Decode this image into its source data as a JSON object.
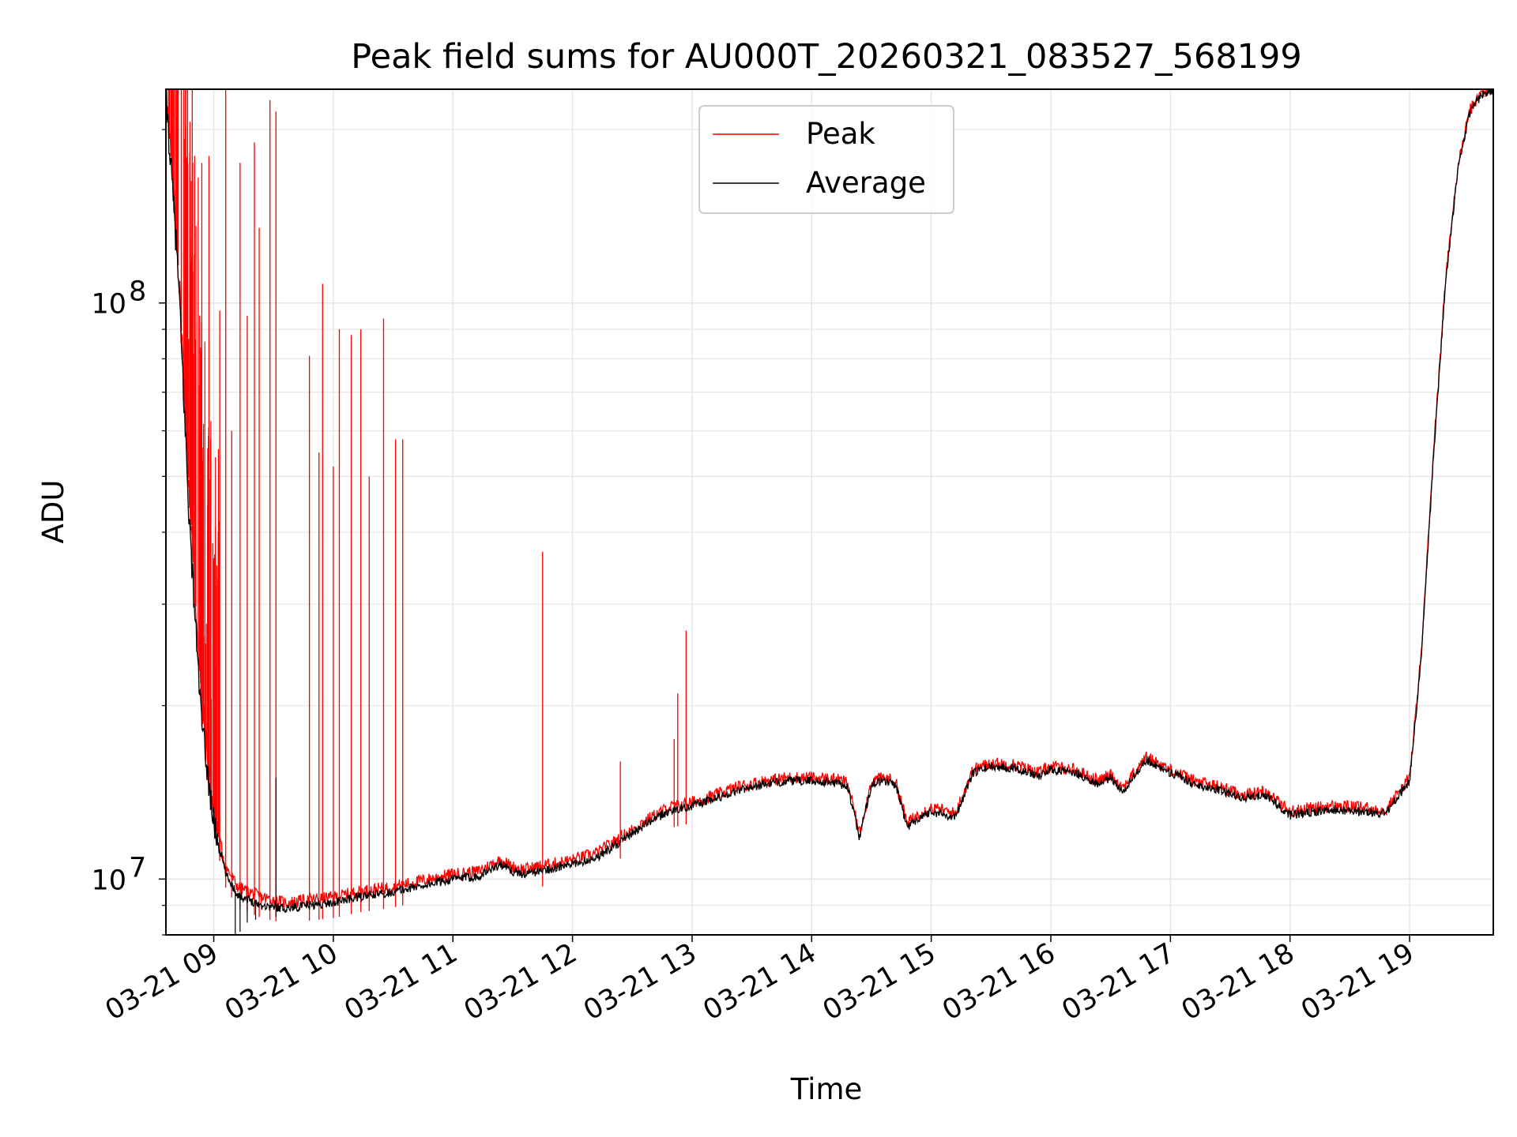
{
  "chart_data": {
    "type": "line",
    "title": "Peak field sums for AU000T_20260321_083527_568199",
    "xlabel": "Time",
    "ylabel": "ADU",
    "x_tick_labels": [
      "03-21 09",
      "03-21 10",
      "03-21 11",
      "03-21 12",
      "03-21 13",
      "03-21 14",
      "03-21 15",
      "03-21 16",
      "03-21 17",
      "03-21 18",
      "03-21 19"
    ],
    "x_tick_hours": [
      9,
      10,
      11,
      12,
      13,
      14,
      15,
      16,
      17,
      18,
      19
    ],
    "xlim_hours": [
      8.6,
      19.7
    ],
    "y_scale": "log",
    "ylim": [
      8000000,
      235000000
    ],
    "y_major_ticks": [
      10000000,
      100000000
    ],
    "y_tick_labels": [
      {
        "base": "10",
        "exp": "7"
      },
      {
        "base": "10",
        "exp": "8"
      }
    ],
    "grid": true,
    "legend_position": "upper-center",
    "series": [
      {
        "name": "Peak",
        "color": "#ff0000",
        "points": [
          [
            8.6,
            235000000
          ],
          [
            8.7,
            120000000
          ],
          [
            8.8,
            45000000
          ],
          [
            8.9,
            20000000
          ],
          [
            9.0,
            13000000
          ],
          [
            9.1,
            10500000
          ],
          [
            9.2,
            9700000
          ],
          [
            9.4,
            9300000
          ],
          [
            9.6,
            9100000
          ],
          [
            9.8,
            9200000
          ],
          [
            10.0,
            9300000
          ],
          [
            10.2,
            9500000
          ],
          [
            10.5,
            9700000
          ],
          [
            10.8,
            10000000
          ],
          [
            11.0,
            10200000
          ],
          [
            11.2,
            10300000
          ],
          [
            11.4,
            10800000
          ],
          [
            11.5,
            10500000
          ],
          [
            11.6,
            10400000
          ],
          [
            11.8,
            10600000
          ],
          [
            12.0,
            10800000
          ],
          [
            12.2,
            11100000
          ],
          [
            12.4,
            11800000
          ],
          [
            12.6,
            12600000
          ],
          [
            12.8,
            13300000
          ],
          [
            13.0,
            13600000
          ],
          [
            13.2,
            14000000
          ],
          [
            13.4,
            14500000
          ],
          [
            13.6,
            14800000
          ],
          [
            13.8,
            15000000
          ],
          [
            14.0,
            15000000
          ],
          [
            14.2,
            14900000
          ],
          [
            14.3,
            14700000
          ],
          [
            14.4,
            12000000
          ],
          [
            14.5,
            14800000
          ],
          [
            14.6,
            15000000
          ],
          [
            14.7,
            14800000
          ],
          [
            14.8,
            12500000
          ],
          [
            14.9,
            13000000
          ],
          [
            15.0,
            13300000
          ],
          [
            15.2,
            13000000
          ],
          [
            15.35,
            15500000
          ],
          [
            15.5,
            15900000
          ],
          [
            15.7,
            15800000
          ],
          [
            15.9,
            15300000
          ],
          [
            16.0,
            15700000
          ],
          [
            16.2,
            15500000
          ],
          [
            16.4,
            14800000
          ],
          [
            16.5,
            15200000
          ],
          [
            16.6,
            14400000
          ],
          [
            16.8,
            16300000
          ],
          [
            17.0,
            15500000
          ],
          [
            17.2,
            14800000
          ],
          [
            17.4,
            14500000
          ],
          [
            17.6,
            14000000
          ],
          [
            17.8,
            14200000
          ],
          [
            18.0,
            13100000
          ],
          [
            18.2,
            13300000
          ],
          [
            18.4,
            13400000
          ],
          [
            18.6,
            13300000
          ],
          [
            18.8,
            13200000
          ],
          [
            19.0,
            15000000
          ],
          [
            19.1,
            25000000
          ],
          [
            19.2,
            55000000
          ],
          [
            19.3,
            110000000
          ],
          [
            19.4,
            170000000
          ],
          [
            19.5,
            215000000
          ],
          [
            19.6,
            232000000
          ],
          [
            19.7,
            235000000
          ]
        ],
        "spikes": [
          [
            8.75,
            235000000
          ],
          [
            8.78,
            235000000
          ],
          [
            8.82,
            235000000
          ],
          [
            8.84,
            180000000
          ],
          [
            8.87,
            165000000
          ],
          [
            8.9,
            175000000
          ],
          [
            8.96,
            180000000
          ],
          [
            9.05,
            97000000
          ],
          [
            9.1,
            235000000
          ],
          [
            9.15,
            60000000
          ],
          [
            9.22,
            175000000
          ],
          [
            9.28,
            95000000
          ],
          [
            9.34,
            190000000
          ],
          [
            9.38,
            135000000
          ],
          [
            9.47,
            225000000
          ],
          [
            9.52,
            215000000
          ],
          [
            9.8,
            81000000
          ],
          [
            9.88,
            55000000
          ],
          [
            9.91,
            108000000
          ],
          [
            10.0,
            52000000
          ],
          [
            10.05,
            90000000
          ],
          [
            10.15,
            88000000
          ],
          [
            10.23,
            90000000
          ],
          [
            10.3,
            50000000
          ],
          [
            10.42,
            94000000
          ],
          [
            10.52,
            58000000
          ],
          [
            10.58,
            58000000
          ],
          [
            11.75,
            37000000
          ],
          [
            12.4,
            16000000
          ],
          [
            12.85,
            17500000
          ],
          [
            12.88,
            21000000
          ],
          [
            12.95,
            27000000
          ]
        ]
      },
      {
        "name": "Average",
        "color": "#000000",
        "points": [
          [
            8.6,
            230000000
          ],
          [
            8.7,
            115000000
          ],
          [
            8.8,
            40000000
          ],
          [
            8.9,
            18500000
          ],
          [
            9.0,
            12500000
          ],
          [
            9.1,
            10200000
          ],
          [
            9.2,
            9400000
          ],
          [
            9.4,
            9000000
          ],
          [
            9.6,
            8900000
          ],
          [
            9.8,
            9000000
          ],
          [
            10.0,
            9100000
          ],
          [
            10.2,
            9300000
          ],
          [
            10.5,
            9500000
          ],
          [
            10.8,
            9800000
          ],
          [
            11.0,
            10000000
          ],
          [
            11.2,
            10100000
          ],
          [
            11.4,
            10600000
          ],
          [
            11.5,
            10300000
          ],
          [
            11.6,
            10200000
          ],
          [
            11.8,
            10400000
          ],
          [
            12.0,
            10600000
          ],
          [
            12.2,
            10900000
          ],
          [
            12.4,
            11600000
          ],
          [
            12.6,
            12400000
          ],
          [
            12.8,
            13100000
          ],
          [
            13.0,
            13400000
          ],
          [
            13.2,
            13800000
          ],
          [
            13.4,
            14300000
          ],
          [
            13.6,
            14600000
          ],
          [
            13.8,
            14800000
          ],
          [
            14.0,
            14800000
          ],
          [
            14.2,
            14700000
          ],
          [
            14.3,
            14500000
          ],
          [
            14.4,
            11800000
          ],
          [
            14.5,
            14600000
          ],
          [
            14.6,
            14800000
          ],
          [
            14.7,
            14600000
          ],
          [
            14.8,
            12300000
          ],
          [
            14.9,
            12800000
          ],
          [
            15.0,
            13100000
          ],
          [
            15.2,
            12800000
          ],
          [
            15.35,
            15300000
          ],
          [
            15.5,
            15700000
          ],
          [
            15.7,
            15600000
          ],
          [
            15.9,
            15100000
          ],
          [
            16.0,
            15500000
          ],
          [
            16.2,
            15300000
          ],
          [
            16.4,
            14600000
          ],
          [
            16.5,
            15000000
          ],
          [
            16.6,
            14200000
          ],
          [
            16.8,
            16100000
          ],
          [
            17.0,
            15300000
          ],
          [
            17.2,
            14600000
          ],
          [
            17.4,
            14300000
          ],
          [
            17.6,
            13800000
          ],
          [
            17.8,
            14000000
          ],
          [
            18.0,
            12900000
          ],
          [
            18.2,
            13100000
          ],
          [
            18.4,
            13200000
          ],
          [
            18.6,
            13100000
          ],
          [
            18.8,
            13000000
          ],
          [
            19.0,
            14800000
          ],
          [
            19.1,
            24500000
          ],
          [
            19.2,
            54000000
          ],
          [
            19.3,
            108000000
          ],
          [
            19.4,
            168000000
          ],
          [
            19.5,
            213000000
          ],
          [
            19.6,
            230000000
          ],
          [
            19.7,
            233000000
          ]
        ]
      }
    ]
  },
  "colors": {
    "peak": "#ff0000",
    "average": "#000000",
    "grid": "#e6e6e6",
    "axis": "#000000"
  }
}
